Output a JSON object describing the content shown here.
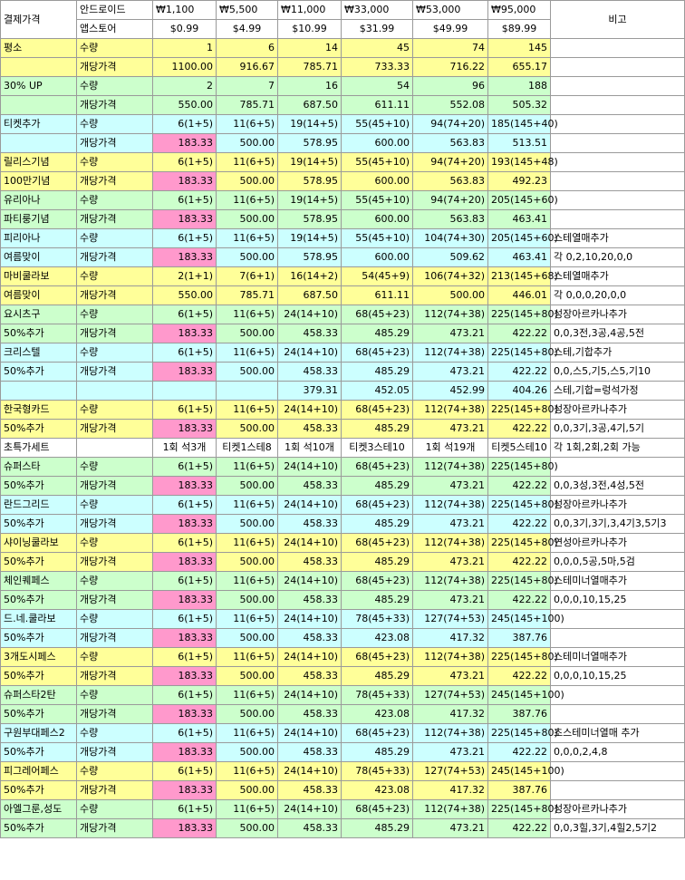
{
  "header": {
    "label": "결제가격",
    "remark": "비고",
    "android_label": "안드로이드",
    "appstore_label": "앱스토어",
    "android": [
      "₩1,100",
      "₩5,500",
      "₩11,000",
      "₩33,000",
      "₩53,000",
      "₩95,000"
    ],
    "appstore": [
      "$0.99",
      "$4.99",
      "$10.99",
      "$31.99",
      "$49.99",
      "$89.99"
    ]
  },
  "rows": [
    {
      "label": "평소",
      "type": "수량",
      "bg": "y",
      "values": [
        "1",
        "6",
        "14",
        "45",
        "74",
        "145"
      ],
      "red": [],
      "pink": [],
      "note": ""
    },
    {
      "label": "",
      "type": "개당가격",
      "bg": "y",
      "values": [
        "1100.00",
        "916.67",
        "785.71",
        "733.33",
        "716.22",
        "655.17"
      ],
      "red": [
        5
      ],
      "pink": [],
      "note": ""
    },
    {
      "label": "30% UP",
      "type": "수량",
      "bg": "g",
      "values": [
        "2",
        "7",
        "16",
        "54",
        "96",
        "188"
      ],
      "red": [],
      "pink": [],
      "note": ""
    },
    {
      "label": "",
      "type": "개당가격",
      "bg": "g",
      "values": [
        "550.00",
        "785.71",
        "687.50",
        "611.11",
        "552.08",
        "505.32"
      ],
      "red": [
        0,
        3,
        4,
        5
      ],
      "pink": [],
      "note": ""
    },
    {
      "label": "티켓추가",
      "type": "수량",
      "bg": "c",
      "values": [
        "6(1+5)",
        "11(6+5)",
        "19(14+5)",
        "55(45+10)",
        "94(74+20)",
        "185(145+40)"
      ],
      "red": [],
      "pink": [],
      "note": ""
    },
    {
      "label": "",
      "type": "개당가격",
      "bg": "c",
      "values": [
        "183.33",
        "500.00",
        "578.95",
        "600.00",
        "563.83",
        "513.51"
      ],
      "red": [
        1,
        2,
        3,
        4,
        5
      ],
      "pink": [
        0
      ],
      "note": ""
    },
    {
      "label": "릴리스기념",
      "type": "수량",
      "bg": "y",
      "values": [
        "6(1+5)",
        "11(6+5)",
        "19(14+5)",
        "55(45+10)",
        "94(74+20)",
        "193(145+48)"
      ],
      "red": [],
      "pink": [],
      "note": ""
    },
    {
      "label": "100만기념",
      "type": "개당가격",
      "bg": "y",
      "values": [
        "183.33",
        "500.00",
        "578.95",
        "600.00",
        "563.83",
        "492.23"
      ],
      "red": [
        1,
        2,
        3,
        4,
        5
      ],
      "pink": [
        0
      ],
      "note": ""
    },
    {
      "label": "유리아나",
      "type": "수량",
      "bg": "g",
      "values": [
        "6(1+5)",
        "11(6+5)",
        "19(14+5)",
        "55(45+10)",
        "94(74+20)",
        "205(145+60)"
      ],
      "red": [],
      "pink": [],
      "note": ""
    },
    {
      "label": "파티룽기념",
      "type": "개당가격",
      "bg": "g",
      "values": [
        "183.33",
        "500.00",
        "578.95",
        "600.00",
        "563.83",
        "463.41"
      ],
      "red": [
        1,
        2,
        3,
        4,
        5
      ],
      "pink": [
        0
      ],
      "note": ""
    },
    {
      "label": "피리아나",
      "type": "수량",
      "bg": "c",
      "values": [
        "6(1+5)",
        "11(6+5)",
        "19(14+5)",
        "55(45+10)",
        "104(74+30)",
        "205(145+60)"
      ],
      "red": [],
      "pink": [],
      "note": "스테열매추가"
    },
    {
      "label": "여름맞이",
      "type": "개당가격",
      "bg": "c",
      "values": [
        "183.33",
        "500.00",
        "578.95",
        "600.00",
        "509.62",
        "463.41"
      ],
      "red": [
        1,
        2,
        3,
        4,
        5
      ],
      "pink": [
        0
      ],
      "note": "각 0,2,10,20,0,0"
    },
    {
      "label": "마비쿨라보",
      "type": "수량",
      "bg": "y",
      "values": [
        "2(1+1)",
        "7(6+1)",
        "16(14+2)",
        "54(45+9)",
        "106(74+32)",
        "213(145+68)"
      ],
      "red": [],
      "pink": [],
      "note": "스테열매추가"
    },
    {
      "label": "여름맞이",
      "type": "개당가격",
      "bg": "y",
      "values": [
        "550.00",
        "785.71",
        "687.50",
        "611.11",
        "500.00",
        "446.01"
      ],
      "red": [
        0,
        3,
        4,
        5
      ],
      "pink": [],
      "note": "각 0,0,0,20,0,0"
    },
    {
      "label": "요시츠구",
      "type": "수량",
      "bg": "g",
      "values": [
        "6(1+5)",
        "11(6+5)",
        "24(14+10)",
        "68(45+23)",
        "112(74+38)",
        "225(145+80)"
      ],
      "red": [],
      "pink": [],
      "note": "성장아르카나추가"
    },
    {
      "label": "50%추가",
      "type": "개당가격",
      "bg": "g",
      "values": [
        "183.33",
        "500.00",
        "458.33",
        "485.29",
        "473.21",
        "422.22"
      ],
      "red": [
        1,
        2,
        3,
        4,
        5
      ],
      "pink": [
        0
      ],
      "note": "0,0,3전,3공,4공,5전"
    },
    {
      "label": "크리스텔",
      "type": "수량",
      "bg": "c",
      "values": [
        "6(1+5)",
        "11(6+5)",
        "24(14+10)",
        "68(45+23)",
        "112(74+38)",
        "225(145+80)"
      ],
      "red": [],
      "pink": [],
      "note": "스테,기합추가"
    },
    {
      "label": "50%추가",
      "type": "개당가격",
      "bg": "c",
      "values": [
        "183.33",
        "500.00",
        "458.33",
        "485.29",
        "473.21",
        "422.22"
      ],
      "red": [
        1,
        2,
        3,
        4,
        5
      ],
      "pink": [
        0
      ],
      "note": "0,0,스5,기5,스5,기10"
    },
    {
      "label": "",
      "type": "",
      "bg": "c",
      "values": [
        "",
        "",
        "379.31",
        "452.05",
        "452.99",
        "404.26"
      ],
      "red": [
        2,
        3,
        4,
        5
      ],
      "pink": [],
      "note": "스테,기합=렁석가정"
    },
    {
      "label": "한국형카드",
      "type": "수량",
      "bg": "y",
      "values": [
        "6(1+5)",
        "11(6+5)",
        "24(14+10)",
        "68(45+23)",
        "112(74+38)",
        "225(145+80)"
      ],
      "red": [],
      "pink": [],
      "note": "성장아르카나추가"
    },
    {
      "label": "50%추가",
      "type": "개당가격",
      "bg": "y",
      "values": [
        "183.33",
        "500.00",
        "458.33",
        "485.29",
        "473.21",
        "422.22"
      ],
      "red": [
        1,
        2,
        3,
        4,
        5
      ],
      "pink": [
        0
      ],
      "note": "0,0,3기,3공,4기,5기"
    },
    {
      "label": "초특가세트",
      "type": "",
      "bg": "w",
      "center": true,
      "values": [
        "1회 석3개",
        "티켓1스테8",
        "1회 석10개",
        "티켓3스테10",
        "1회 석19개",
        "티켓5스테10"
      ],
      "red": [],
      "pink": [],
      "note": "각 1회,2회,2회 가능"
    },
    {
      "label": "슈퍼스타",
      "type": "수량",
      "bg": "g",
      "values": [
        "6(1+5)",
        "11(6+5)",
        "24(14+10)",
        "68(45+23)",
        "112(74+38)",
        "225(145+80)"
      ],
      "red": [],
      "pink": [],
      "note": ""
    },
    {
      "label": "50%추가",
      "type": "개당가격",
      "bg": "g",
      "values": [
        "183.33",
        "500.00",
        "458.33",
        "485.29",
        "473.21",
        "422.22"
      ],
      "red": [
        1,
        2,
        3,
        4,
        5
      ],
      "pink": [
        0
      ],
      "note": "0,0,3성,3전,4성,5전"
    },
    {
      "label": "란드그리드",
      "type": "수량",
      "bg": "c",
      "values": [
        "6(1+5)",
        "11(6+5)",
        "24(14+10)",
        "68(45+23)",
        "112(74+38)",
        "225(145+80)"
      ],
      "red": [],
      "pink": [],
      "note": "성장아르카나추가"
    },
    {
      "label": "50%추가",
      "type": "개당가격",
      "bg": "c",
      "values": [
        "183.33",
        "500.00",
        "458.33",
        "485.29",
        "473.21",
        "422.22"
      ],
      "red": [
        1,
        2,
        3,
        4,
        5
      ],
      "pink": [
        0
      ],
      "note": "0,0,3기,3기,3,4기3,5기3"
    },
    {
      "label": "샤이닝쿨라보",
      "type": "수량",
      "bg": "y",
      "values": [
        "6(1+5)",
        "11(6+5)",
        "24(14+10)",
        "68(45+23)",
        "112(74+38)",
        "225(145+80)"
      ],
      "red": [],
      "pink": [],
      "note": "연성아르카나추가"
    },
    {
      "label": "50%추가",
      "type": "개당가격",
      "bg": "y",
      "values": [
        "183.33",
        "500.00",
        "458.33",
        "485.29",
        "473.21",
        "422.22"
      ],
      "red": [
        1,
        2,
        3,
        4,
        5
      ],
      "pink": [
        0
      ],
      "note": "0,0,0,5공,5마,5검"
    },
    {
      "label": "체인퀘페스",
      "type": "수량",
      "bg": "g",
      "values": [
        "6(1+5)",
        "11(6+5)",
        "24(14+10)",
        "68(45+23)",
        "112(74+38)",
        "225(145+80)"
      ],
      "red": [],
      "pink": [],
      "note": "스테미너열매추가"
    },
    {
      "label": "50%추가",
      "type": "개당가격",
      "bg": "g",
      "values": [
        "183.33",
        "500.00",
        "458.33",
        "485.29",
        "473.21",
        "422.22"
      ],
      "red": [
        1,
        2,
        3,
        4,
        5
      ],
      "pink": [
        0
      ],
      "note": "0,0,0,10,15,25"
    },
    {
      "label": "드.네.쿨라보",
      "type": "수량",
      "bg": "c",
      "values": [
        "6(1+5)",
        "11(6+5)",
        "24(14+10)",
        "78(45+33)",
        "127(74+53)",
        "245(145+100)"
      ],
      "red": [],
      "pink": [],
      "note": ""
    },
    {
      "label": "50%추가",
      "type": "개당가격",
      "bg": "c",
      "values": [
        "183.33",
        "500.00",
        "458.33",
        "423.08",
        "417.32",
        "387.76"
      ],
      "red": [
        1,
        2,
        3,
        4,
        5
      ],
      "pink": [
        0
      ],
      "note": ""
    },
    {
      "label": "3개도시페스",
      "type": "수량",
      "bg": "y",
      "values": [
        "6(1+5)",
        "11(6+5)",
        "24(14+10)",
        "68(45+23)",
        "112(74+38)",
        "225(145+80)"
      ],
      "red": [],
      "pink": [],
      "note": "스테미너열매추가"
    },
    {
      "label": "50%추가",
      "type": "개당가격",
      "bg": "y",
      "values": [
        "183.33",
        "500.00",
        "458.33",
        "485.29",
        "473.21",
        "422.22"
      ],
      "red": [
        1,
        2,
        3,
        4,
        5
      ],
      "pink": [
        0
      ],
      "note": "0,0,0,10,15,25"
    },
    {
      "label": "슈퍼스타2탄",
      "type": "수량",
      "bg": "g",
      "values": [
        "6(1+5)",
        "11(6+5)",
        "24(14+10)",
        "78(45+33)",
        "127(74+53)",
        "245(145+100)"
      ],
      "red": [],
      "pink": [],
      "note": ""
    },
    {
      "label": "50%추가",
      "type": "개당가격",
      "bg": "g",
      "values": [
        "183.33",
        "500.00",
        "458.33",
        "423.08",
        "417.32",
        "387.76"
      ],
      "red": [
        1,
        2,
        3,
        4,
        5
      ],
      "pink": [
        0
      ],
      "note": ""
    },
    {
      "label": "구원부대페스2",
      "type": "수량",
      "bg": "c",
      "values": [
        "6(1+5)",
        "11(6+5)",
        "24(14+10)",
        "68(45+23)",
        "112(74+38)",
        "225(145+80)"
      ],
      "red": [],
      "pink": [],
      "note": "초스테미너열매 추가"
    },
    {
      "label": "50%추가",
      "type": "개당가격",
      "bg": "c",
      "values": [
        "183.33",
        "500.00",
        "458.33",
        "485.29",
        "473.21",
        "422.22"
      ],
      "red": [
        1,
        2,
        3,
        4,
        5
      ],
      "pink": [
        0
      ],
      "note": "0,0,0,2,4,8"
    },
    {
      "label": "피그레어페스",
      "type": "수량",
      "bg": "y",
      "values": [
        "6(1+5)",
        "11(6+5)",
        "24(14+10)",
        "78(45+33)",
        "127(74+53)",
        "245(145+100)"
      ],
      "red": [],
      "pink": [],
      "note": ""
    },
    {
      "label": "50%추가",
      "type": "개당가격",
      "bg": "y",
      "values": [
        "183.33",
        "500.00",
        "458.33",
        "423.08",
        "417.32",
        "387.76"
      ],
      "red": [
        1,
        2,
        3,
        4,
        5
      ],
      "pink": [
        0
      ],
      "note": ""
    },
    {
      "label": "아엘그룬,성도",
      "type": "수량",
      "bg": "g",
      "values": [
        "6(1+5)",
        "11(6+5)",
        "24(14+10)",
        "68(45+23)",
        "112(74+38)",
        "225(145+80)"
      ],
      "red": [],
      "pink": [],
      "note": "성장아르카나추가"
    },
    {
      "label": "50%추가",
      "type": "개당가격",
      "bg": "g",
      "values": [
        "183.33",
        "500.00",
        "458.33",
        "485.29",
        "473.21",
        "422.22"
      ],
      "red": [
        1,
        2,
        3,
        4,
        5
      ],
      "pink": [
        0
      ],
      "note": "0,0,3힐,3기,4힐2,5기2"
    }
  ]
}
